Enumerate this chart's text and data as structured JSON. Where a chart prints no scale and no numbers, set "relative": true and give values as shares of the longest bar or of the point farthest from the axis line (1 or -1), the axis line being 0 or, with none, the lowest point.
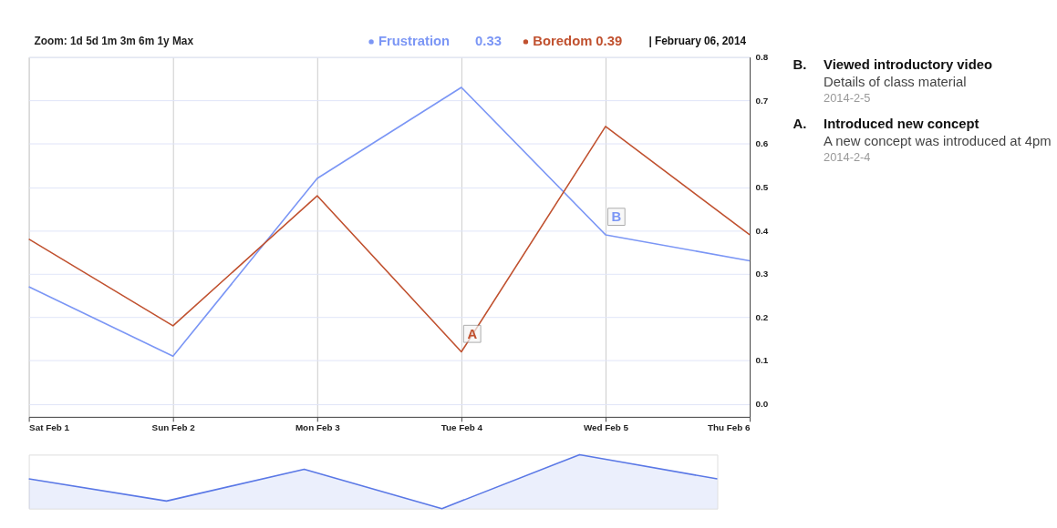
{
  "chart_data": [
    {
      "type": "line",
      "x": [
        "2014-02-01",
        "2014-02-02",
        "2014-02-03",
        "2014-02-04",
        "2014-02-05",
        "2014-02-06"
      ],
      "series": [
        {
          "name": "Frustration",
          "color": "#7b96f5",
          "values": [
            0.27,
            0.11,
            0.52,
            0.73,
            0.39,
            0.33
          ]
        },
        {
          "name": "Boredom",
          "color": "#c0512f",
          "values": [
            0.38,
            0.18,
            0.48,
            0.12,
            0.64,
            0.39
          ]
        }
      ],
      "xlim": [
        "2014-02-01",
        "2014-02-06"
      ],
      "xticks": [
        {
          "value": "2014-02-01",
          "label": "Sat Feb 1"
        },
        {
          "value": "2014-02-02",
          "label": "Sun Feb 2"
        },
        {
          "value": "2014-02-03",
          "label": "Mon Feb 3"
        },
        {
          "value": "2014-02-04",
          "label": "Tue Feb 4"
        },
        {
          "value": "2014-02-05",
          "label": "Wed Feb 5"
        },
        {
          "value": "2014-02-06",
          "label": "Thu Feb 6"
        }
      ],
      "ylim": [
        -0.03,
        0.8
      ],
      "yticks": [
        {
          "value": 0,
          "label": "0.0"
        },
        0.1,
        0.2,
        0.3,
        0.4,
        0.5,
        0.6,
        0.7,
        0.8
      ],
      "grid": true,
      "legend": "top right",
      "annotations": [
        "Zoom: 1d 5d 1m 3m 6m 1y Max",
        "| February 06, 2014",
        "0.33",
        "0.39",
        {
          "text": "A",
          "x": "2014-02-04",
          "y": 0.12
        },
        {
          "text": "B",
          "x": "2014-02-05",
          "y": 0.39
        },
        "B.",
        "Viewed introductory video",
        "Details of class material",
        "2014-2-5",
        "A.",
        "Introduced new concept",
        "A new concept was introduced at 4pm",
        "2014-2-4"
      ]
    },
    {
      "type": "area",
      "categories": [
        null,
        null,
        null,
        null,
        null,
        null
      ],
      "relative": true,
      "series": [
        {
          "color": "#5a78e6",
          "values": [
            0.55,
            0.14,
            0.73,
            0.0,
            1.0,
            0.55
          ]
        }
      ]
    }
  ]
}
